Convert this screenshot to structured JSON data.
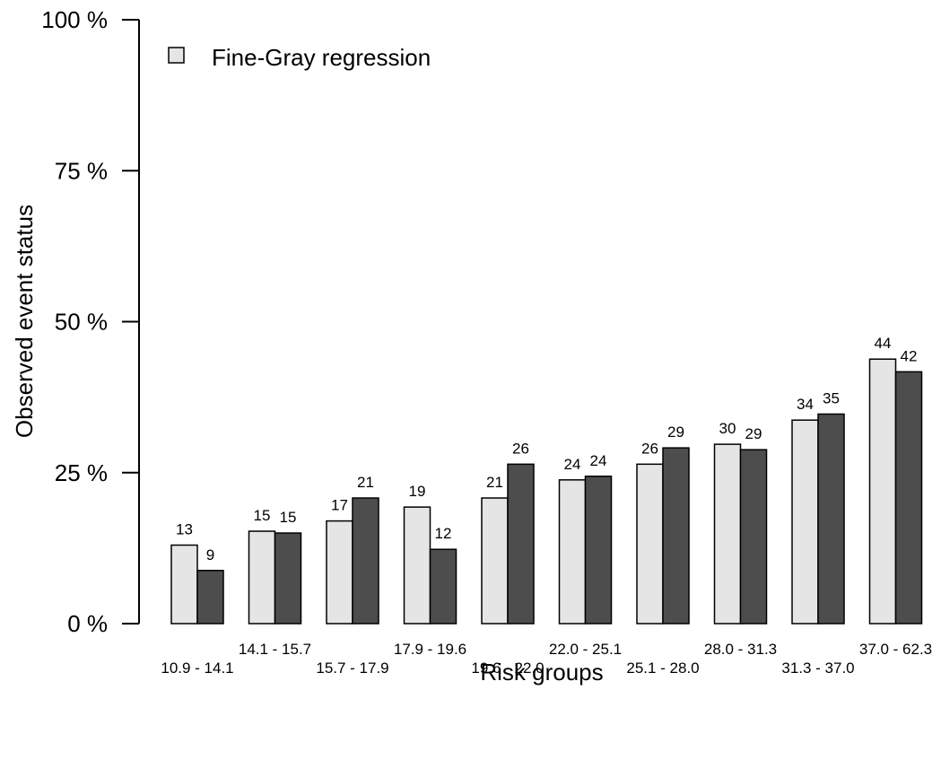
{
  "chart_data": {
    "type": "bar",
    "xlabel": "Risk groups",
    "ylabel": "Observed event status",
    "ylim": [
      0,
      100
    ],
    "yticks": [
      0,
      25,
      50,
      75,
      100
    ],
    "ytick_labels": [
      "0 %",
      "25 %",
      "50 %",
      "75 %",
      "100 %"
    ],
    "categories": [
      "10.9 - 14.1",
      "14.1 - 15.7",
      "15.7 - 17.9",
      "17.9 - 19.6",
      "19.6 - 22.0",
      "22.0 - 25.1",
      "25.1 - 28.0",
      "28.0 - 31.3",
      "31.3 - 37.0",
      "37.0 - 62.3"
    ],
    "series": [
      {
        "name": "Fine-Gray regression",
        "color": "#e5e5e5",
        "values": [
          13,
          15.3,
          17,
          19.3,
          20.8,
          23.8,
          26.4,
          29.7,
          33.7,
          43.8
        ],
        "labels": [
          "13",
          "15",
          "17",
          "19",
          "21",
          "24",
          "26",
          "30",
          "34",
          "44"
        ]
      },
      {
        "color": "#4d4d4d",
        "values": [
          8.8,
          15,
          20.8,
          12.3,
          26.4,
          24.4,
          29.1,
          28.8,
          34.7,
          41.7
        ],
        "labels": [
          "9",
          "15",
          "21",
          "12",
          "26",
          "24",
          "29",
          "29",
          "35",
          "42"
        ]
      }
    ],
    "legend": {
      "entries": [
        "Fine-Gray regression"
      ],
      "position": "top-left"
    },
    "grid": false
  }
}
